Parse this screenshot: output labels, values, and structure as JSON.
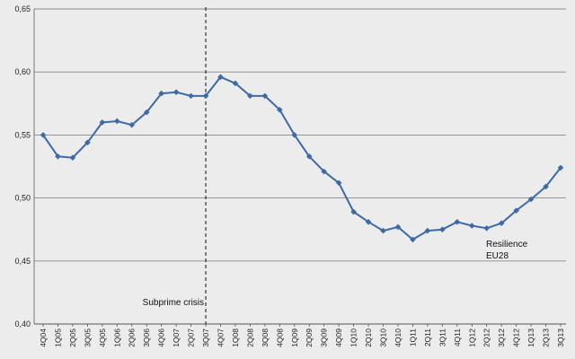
{
  "chart_data": {
    "type": "line",
    "title": "",
    "xlabel": "",
    "ylabel": "",
    "ylim": [
      0.4,
      0.65
    ],
    "y_ticks": [
      "0,40",
      "0,45",
      "0,50",
      "0,55",
      "0,60",
      "0,65"
    ],
    "y_tick_values": [
      0.4,
      0.45,
      0.5,
      0.55,
      0.6,
      0.65
    ],
    "grid": "horizontal",
    "colors": {
      "line": "#3d6aa6",
      "marker": "#3d6aa6",
      "grid": "#888888",
      "background": "#ececec",
      "event_line": "#222222"
    },
    "categories": [
      "4Q04",
      "1Q05",
      "2Q05",
      "3Q05",
      "4Q05",
      "1Q06",
      "2Q06",
      "3Q06",
      "4Q06",
      "1Q07",
      "2Q07",
      "3Q07",
      "4Q07",
      "1Q08",
      "2Q08",
      "3Q08",
      "4Q08",
      "1Q09",
      "2Q09",
      "3Q09",
      "4Q09",
      "1Q10",
      "2Q10",
      "3Q10",
      "4Q10",
      "1Q11",
      "2Q11",
      "3Q11",
      "4Q11",
      "1Q12",
      "2Q12",
      "3Q12",
      "4Q12",
      "1Q13",
      "2Q13",
      "3Q13"
    ],
    "series": [
      {
        "name": "Resilience EU28",
        "values": [
          0.55,
          0.533,
          0.532,
          0.544,
          0.56,
          0.561,
          0.558,
          0.568,
          0.583,
          0.584,
          0.581,
          0.581,
          0.596,
          0.591,
          0.581,
          0.581,
          0.57,
          0.55,
          0.533,
          0.521,
          0.512,
          0.489,
          0.481,
          0.474,
          0.477,
          0.467,
          0.474,
          0.475,
          0.481,
          0.478,
          0.476,
          0.48,
          0.49,
          0.499,
          0.509,
          0.524
        ]
      }
    ],
    "annotations": [
      {
        "text": "Subprime crisis",
        "at_category": "3Q07",
        "style": "dashed vertical line"
      }
    ],
    "series_label": {
      "line1": "Resilience",
      "line2": "EU28"
    }
  }
}
